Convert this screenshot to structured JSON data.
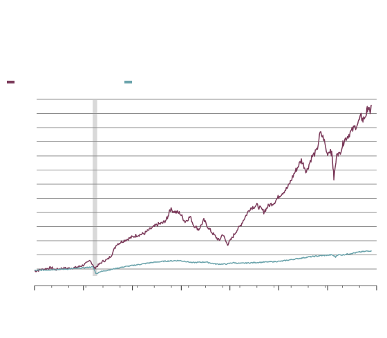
{
  "chart_data": {
    "type": "line",
    "title": "",
    "xlabel": "",
    "ylabel": "",
    "grid": true,
    "legend_placement": "top-left",
    "xlim": [
      0,
      1
    ],
    "ylim": [
      0,
      12
    ],
    "y_ticks": [
      0,
      1,
      2,
      3,
      4,
      5,
      6,
      7,
      8,
      9,
      10,
      11,
      12
    ],
    "x_minor_tick_count": 21,
    "x_major_ticks": [
      0,
      0.143,
      0.286,
      0.429,
      0.571,
      0.714,
      0.857,
      1.0
    ],
    "shaded_band": {
      "x_start": 0.17,
      "x_end": 0.183,
      "color": "#d9d9d9"
    },
    "series": [
      {
        "name": "",
        "color": "#7b3a5a",
        "x": [
          0.0,
          0.03,
          0.05,
          0.06,
          0.08,
          0.1,
          0.12,
          0.14,
          0.155,
          0.163,
          0.168,
          0.175,
          0.19,
          0.2,
          0.215,
          0.225,
          0.24,
          0.26,
          0.28,
          0.3,
          0.32,
          0.34,
          0.36,
          0.375,
          0.385,
          0.39,
          0.395,
          0.41,
          0.425,
          0.44,
          0.455,
          0.465,
          0.48,
          0.495,
          0.51,
          0.525,
          0.54,
          0.55,
          0.56,
          0.565,
          0.575,
          0.59,
          0.6,
          0.63,
          0.65,
          0.66,
          0.67,
          0.685,
          0.7,
          0.72,
          0.74,
          0.76,
          0.78,
          0.795,
          0.81,
          0.825,
          0.835,
          0.845,
          0.855,
          0.865,
          0.87,
          0.875,
          0.885,
          0.89,
          0.9,
          0.905,
          0.915,
          0.93,
          0.945,
          0.955,
          0.96,
          0.97,
          0.975,
          0.98,
          0.985
        ],
        "y": [
          -0.15,
          0.0,
          0.1,
          -0.05,
          0.05,
          0.05,
          0.1,
          0.25,
          0.45,
          0.65,
          0.35,
          0.05,
          0.35,
          0.55,
          0.7,
          1.0,
          1.75,
          2.0,
          2.2,
          2.4,
          2.5,
          2.85,
          3.15,
          3.25,
          3.5,
          3.7,
          4.25,
          4.05,
          3.95,
          3.35,
          3.7,
          3.1,
          2.8,
          3.45,
          2.85,
          2.4,
          2.0,
          2.5,
          1.9,
          1.75,
          2.1,
          2.7,
          3.0,
          4.3,
          4.5,
          4.3,
          4.05,
          4.5,
          4.7,
          5.3,
          5.75,
          6.8,
          7.7,
          6.9,
          7.9,
          8.35,
          9.6,
          9.25,
          8.15,
          8.45,
          8.0,
          6.4,
          8.35,
          8.05,
          8.75,
          9.1,
          9.4,
          9.85,
          10.3,
          10.8,
          10.5,
          11.0,
          11.5,
          11.0,
          11.6
        ]
      },
      {
        "name": "",
        "color": "#6aa3ab",
        "x": [
          0.0,
          0.05,
          0.1,
          0.15,
          0.17,
          0.175,
          0.18,
          0.19,
          0.22,
          0.26,
          0.3,
          0.34,
          0.38,
          0.42,
          0.44,
          0.46,
          0.5,
          0.53,
          0.56,
          0.58,
          0.6,
          0.64,
          0.68,
          0.72,
          0.76,
          0.8,
          0.84,
          0.87,
          0.88,
          0.885,
          0.9,
          0.95,
          0.985
        ],
        "y": [
          -0.1,
          -0.05,
          0.0,
          0.1,
          0.15,
          -0.05,
          -0.35,
          -0.2,
          -0.05,
          0.15,
          0.3,
          0.45,
          0.55,
          0.6,
          0.55,
          0.45,
          0.5,
          0.35,
          0.35,
          0.45,
          0.4,
          0.45,
          0.5,
          0.55,
          0.7,
          0.85,
          0.95,
          1.0,
          0.85,
          1.0,
          1.0,
          1.2,
          1.3
        ]
      }
    ]
  }
}
